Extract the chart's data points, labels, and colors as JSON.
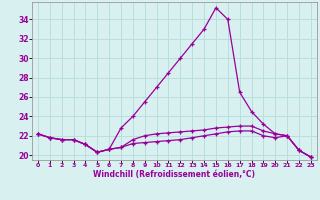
{
  "xlabel": "Windchill (Refroidissement éolien,°C)",
  "x": [
    0,
    1,
    2,
    3,
    4,
    5,
    6,
    7,
    8,
    9,
    10,
    11,
    12,
    13,
    14,
    15,
    16,
    17,
    18,
    19,
    20,
    21,
    22,
    23
  ],
  "line1": [
    22.2,
    21.8,
    21.6,
    21.6,
    21.1,
    20.3,
    20.6,
    22.8,
    24.0,
    25.5,
    27.0,
    28.5,
    30.0,
    31.5,
    33.0,
    35.2,
    34.0,
    26.5,
    24.5,
    23.2,
    22.2,
    22.0,
    20.5,
    19.8
  ],
  "line2": [
    22.2,
    21.8,
    21.6,
    21.6,
    21.1,
    20.3,
    20.6,
    20.8,
    21.6,
    22.0,
    22.2,
    22.3,
    22.4,
    22.5,
    22.6,
    22.8,
    22.9,
    23.0,
    23.0,
    22.5,
    22.2,
    22.0,
    20.5,
    19.8
  ],
  "line3": [
    22.2,
    21.8,
    21.6,
    21.6,
    21.1,
    20.3,
    20.6,
    20.8,
    21.2,
    21.3,
    21.4,
    21.5,
    21.6,
    21.8,
    22.0,
    22.2,
    22.4,
    22.5,
    22.5,
    22.0,
    21.8,
    22.0,
    20.5,
    19.8
  ],
  "line_color": "#990099",
  "bg_color": "#d8f0f0",
  "grid_color": "#b8dede",
  "ylim": [
    19.5,
    35.8
  ],
  "yticks": [
    20,
    22,
    24,
    26,
    28,
    30,
    32,
    34
  ],
  "xlim": [
    -0.5,
    23.5
  ],
  "figsize": [
    3.2,
    2.0
  ],
  "dpi": 100
}
